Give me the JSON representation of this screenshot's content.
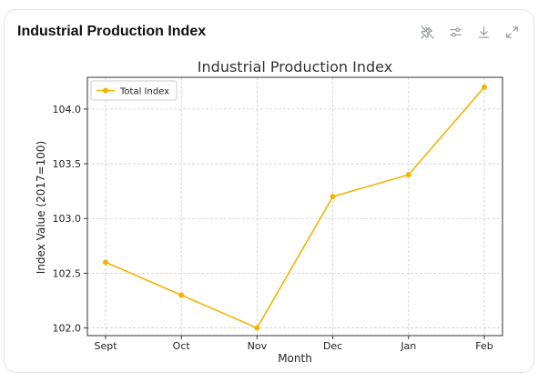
{
  "card": {
    "title": "Industrial Production Index"
  },
  "toolbar": {
    "icons": [
      "pin-off-icon",
      "sliders-icon",
      "download-icon",
      "expand-icon"
    ]
  },
  "chart_data": {
    "type": "line",
    "title": "Industrial Production Index",
    "xlabel": "Month",
    "ylabel": "Index Value (2017=100)",
    "categories": [
      "Sept",
      "Oct",
      "Nov",
      "Dec",
      "Jan",
      "Feb"
    ],
    "series": [
      {
        "name": "Total Index",
        "values": [
          102.6,
          102.3,
          102.0,
          103.2,
          103.4,
          104.2
        ],
        "color": "#f5b301"
      }
    ],
    "ylim": [
      101.93,
      104.29
    ],
    "yticks": [
      102.0,
      102.5,
      103.0,
      103.5,
      104.0
    ],
    "ytick_labels": [
      "102.0",
      "102.5",
      "103.0",
      "103.5",
      "104.0"
    ],
    "grid": true,
    "legend_position": "top-left"
  }
}
